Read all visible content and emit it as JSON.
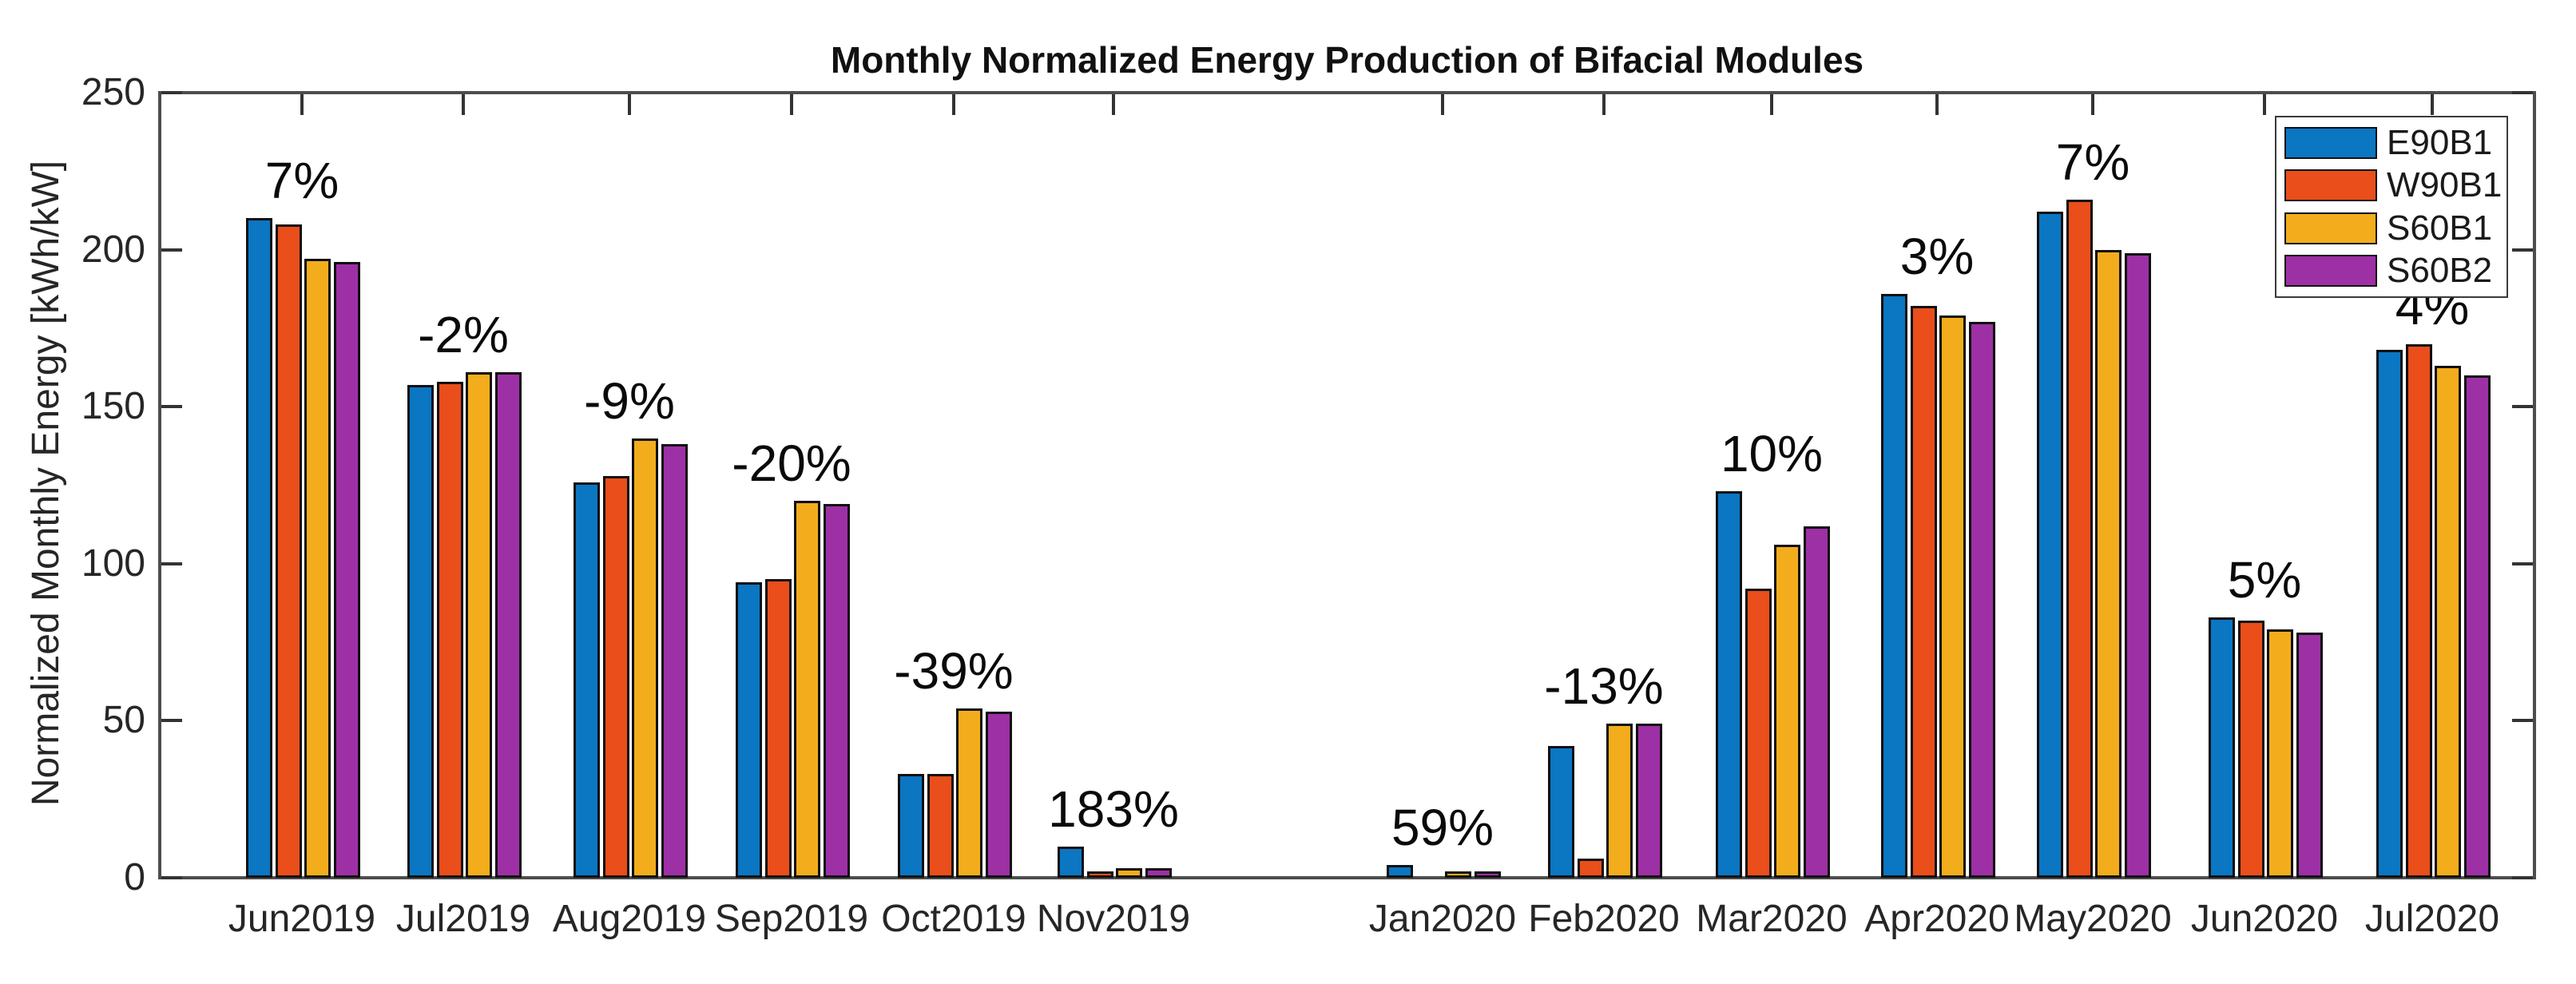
{
  "title": "Monthly Normalized Energy Production of Bifacial Modules",
  "chart_data": {
    "type": "bar",
    "title": "Monthly Normalized Energy Production of Bifacial Modules",
    "xlabel": "",
    "ylabel": "Normalized Monthly Energy [kWh/kW]",
    "ylim": [
      0,
      250
    ],
    "yticks": [
      0,
      50,
      100,
      150,
      200,
      250
    ],
    "grid": false,
    "legend_position": "top-right",
    "categories": [
      "Jun2019",
      "Jul2019",
      "Aug2019",
      "Sep2019",
      "Oct2019",
      "Nov2019",
      "",
      "Jan2020",
      "Feb2020",
      "Mar2020",
      "Apr2020",
      "May2020",
      "Jun2020",
      "Jul2020"
    ],
    "series": [
      {
        "name": "E90B1",
        "color": "#0b76c2",
        "values": [
          210,
          157,
          126,
          94,
          33,
          10,
          null,
          4,
          42,
          123,
          186,
          212,
          83,
          168
        ]
      },
      {
        "name": "W90B1",
        "color": "#e94e1b",
        "values": [
          208,
          158,
          128,
          95,
          33,
          2,
          null,
          0,
          6,
          92,
          182,
          216,
          82,
          170
        ]
      },
      {
        "name": "S60B1",
        "color": "#f3ad1c",
        "values": [
          197,
          161,
          140,
          120,
          54,
          3,
          null,
          2,
          49,
          106,
          179,
          200,
          79,
          163
        ]
      },
      {
        "name": "S60B2",
        "color": "#9e30a5",
        "values": [
          196,
          161,
          138,
          119,
          53,
          3,
          null,
          2,
          49,
          112,
          177,
          199,
          78,
          160
        ]
      }
    ],
    "annotations": [
      "7%",
      "-2%",
      "-9%",
      "-20%",
      "-39%",
      "183%",
      null,
      "59%",
      "-13%",
      "10%",
      "3%",
      "7%",
      "5%",
      "4%"
    ]
  }
}
